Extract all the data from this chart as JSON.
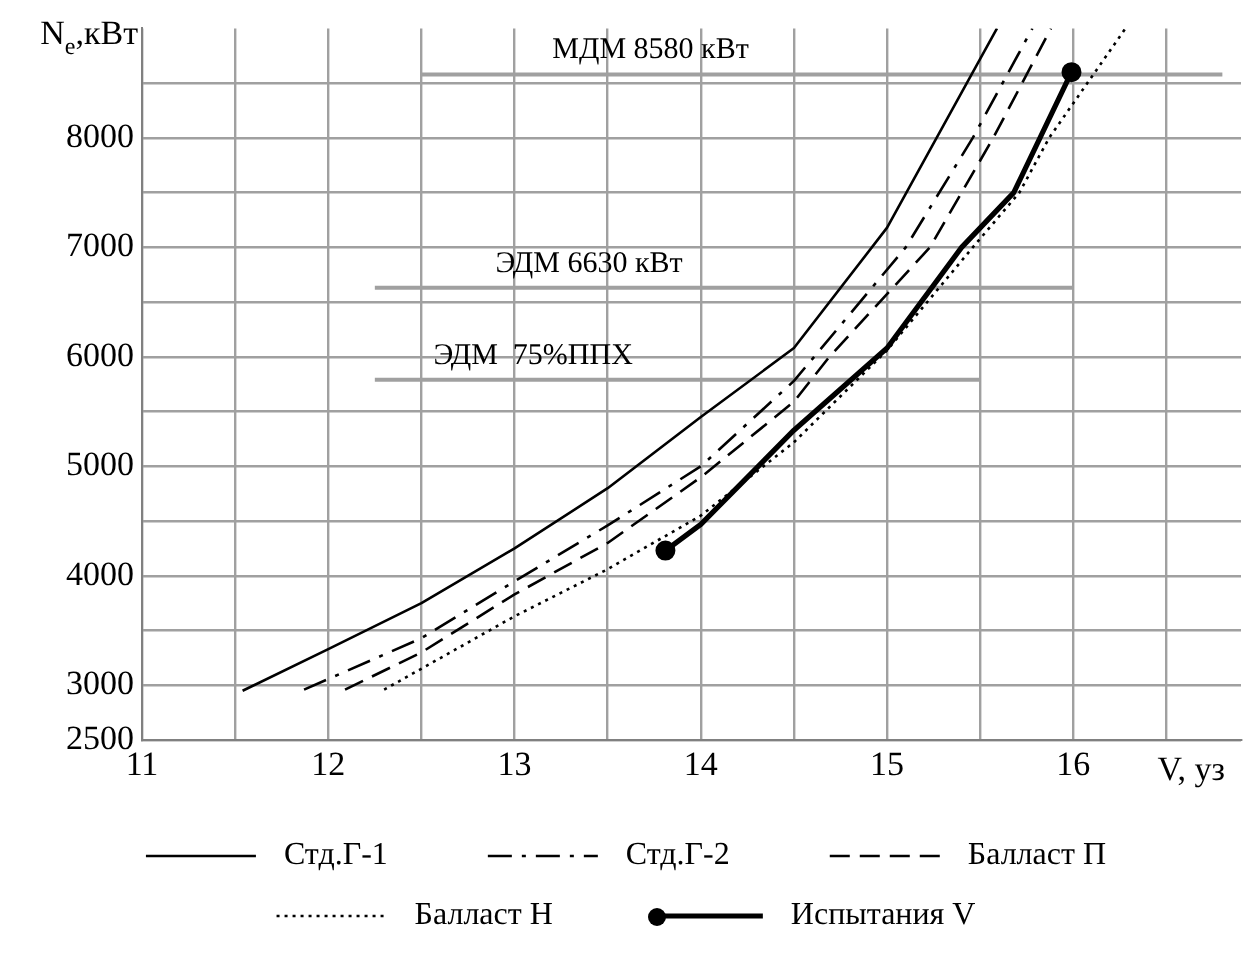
{
  "chart_data": {
    "type": "line",
    "xlabel": "V, уз",
    "ylabel": "N$_{e}$,кВт",
    "xlim": [
      11,
      16.9
    ],
    "ylim": [
      2500,
      9000
    ],
    "xticks": [
      11,
      {
        "value": 11.5,
        "label": null
      },
      12,
      {
        "value": 12.5,
        "label": null
      },
      13,
      {
        "value": 13.5,
        "label": null
      },
      14,
      {
        "value": 14.5,
        "label": null
      },
      15,
      {
        "value": 15.5,
        "label": null
      },
      16,
      {
        "value": 16.5,
        "label": null
      }
    ],
    "yticks": [
      2500,
      3000,
      {
        "value": 3500,
        "label": null
      },
      4000,
      {
        "value": 4500,
        "label": null
      },
      5000,
      {
        "value": 5500,
        "label": null
      },
      6000,
      {
        "value": 6500,
        "label": null
      },
      7000,
      {
        "value": 7500,
        "label": null
      },
      8000,
      {
        "value": 8500,
        "label": null
      }
    ],
    "grid": true,
    "legend": "bottom",
    "series": [
      {
        "name": "Стд.Г-1",
        "color": "#000000",
        "line_style": "solid",
        "marker": "none",
        "x": [
          11.54,
          12,
          12.5,
          13,
          13.5,
          14,
          14.5,
          15,
          15.59
        ],
        "values": [
          2950,
          3330,
          3750,
          4250,
          4800,
          5450,
          6080,
          7180,
          9000
        ]
      },
      {
        "name": "Стд.Г-2",
        "color": "#000000",
        "line_style": "dashdot",
        "marker": "none",
        "x": [
          11.87,
          12.5,
          13,
          13.5,
          14,
          14.5,
          15.1,
          15.46,
          15.78
        ],
        "values": [
          2960,
          3430,
          3950,
          4460,
          5000,
          5780,
          7000,
          8000,
          9000
        ]
      },
      {
        "name": "Балласт П",
        "color": "#000000",
        "line_style": "dashed",
        "marker": "none",
        "x": [
          12.09,
          12.5,
          13,
          13.5,
          14,
          14.5,
          14.69,
          15.23,
          15.57,
          15.88
        ],
        "values": [
          2960,
          3300,
          3830,
          4300,
          4900,
          5590,
          6000,
          7000,
          8000,
          9000
        ]
      },
      {
        "name": "Балласт Н",
        "color": "#000000",
        "line_style": "dotted",
        "marker": "none",
        "x": [
          12.3,
          13,
          13.5,
          14,
          14.5,
          15,
          15.46,
          15.71,
          15.87,
          16.28
        ],
        "values": [
          2960,
          3630,
          4060,
          4550,
          5220,
          6060,
          7000,
          7500,
          8000,
          9000
        ]
      },
      {
        "name": "Испытания V",
        "color": "#000000",
        "line_style": "solid",
        "marker": "none",
        "x": [
          13.81,
          14,
          14.5,
          15,
          15.4,
          15.68,
          15.99
        ],
        "values": [
          4230,
          4470,
          5330,
          6080,
          7000,
          7500,
          8600
        ]
      },
      {
        "type": "scatter",
        "color": "#000000",
        "marker": "circle",
        "x": [
          13.81,
          15.99
        ],
        "values": [
          4230,
          8600
        ]
      },
      {
        "color": "#a0a0a0",
        "line_style": "solid",
        "marker": "none",
        "x": [
          12.5,
          16.8
        ],
        "values": [
          8580,
          8580
        ]
      },
      {
        "color": "#a0a0a0",
        "line_style": "solid",
        "marker": "none",
        "x": [
          12.25,
          16
        ],
        "values": [
          6630,
          6630
        ]
      },
      {
        "color": "#a0a0a0",
        "line_style": "solid",
        "marker": "none",
        "x": [
          12.25,
          15.5
        ],
        "values": [
          5790,
          5790
        ]
      }
    ],
    "annotations": [
      {
        "text": "МДМ 8580 кВт",
        "x": 13.73,
        "y": 8580
      },
      {
        "text": "ЭДМ 6630 кВт",
        "x": 13.4,
        "y": 6630
      },
      {
        "text": "ЭДМ  75%ППХ",
        "x": 13.1,
        "y": 5790
      }
    ]
  }
}
